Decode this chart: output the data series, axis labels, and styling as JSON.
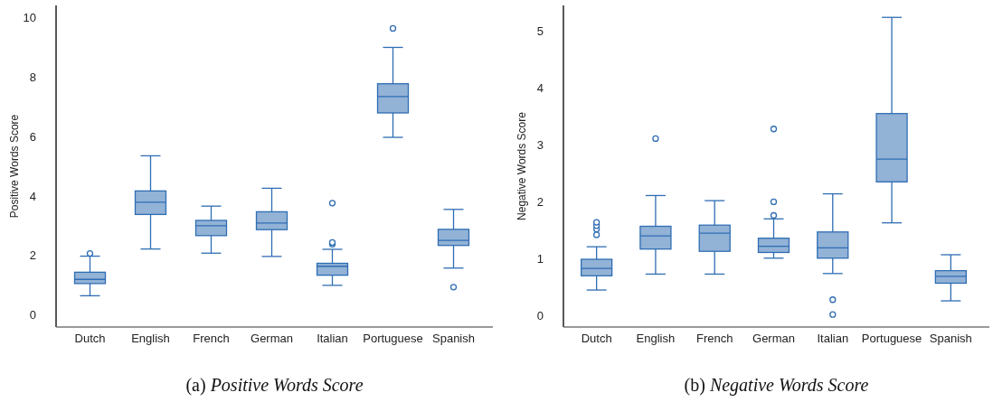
{
  "chart_data": [
    {
      "type": "box",
      "title": "(a) Positive Words Score",
      "ylabel": "Positive Words Score",
      "categories": [
        "Dutch",
        "English",
        "French",
        "German",
        "Italian",
        "Portuguese",
        "Spanish"
      ],
      "ylim": [
        -0.4,
        10.4
      ],
      "yticks": [
        0,
        2,
        4,
        6,
        8,
        10
      ],
      "grid": false,
      "series": [
        {
          "color": "#92b2d6",
          "boxes": [
            {
              "low": 0.65,
              "q1": 1.06,
              "median": 1.2,
              "q3": 1.44,
              "high": 1.98,
              "outliers": [
                2.07
              ]
            },
            {
              "low": 2.22,
              "q1": 3.38,
              "median": 3.79,
              "q3": 4.17,
              "high": 5.35
            },
            {
              "low": 2.08,
              "q1": 2.67,
              "median": 3.0,
              "q3": 3.18,
              "high": 3.66
            },
            {
              "low": 1.97,
              "q1": 2.87,
              "median": 3.09,
              "q3": 3.47,
              "high": 4.26
            },
            {
              "low": 1.0,
              "q1": 1.34,
              "median": 1.64,
              "q3": 1.74,
              "high": 2.21,
              "outliers": [
                2.38,
                2.44,
                3.76
              ]
            },
            {
              "low": 5.97,
              "q1": 6.79,
              "median": 7.34,
              "q3": 7.77,
              "high": 8.99,
              "outliers": [
                9.63
              ]
            },
            {
              "low": 1.58,
              "q1": 2.34,
              "median": 2.51,
              "q3": 2.88,
              "high": 3.55,
              "outliers": [
                0.94
              ]
            }
          ]
        }
      ]
    },
    {
      "type": "box",
      "title": "(b) Negative Words Score",
      "ylabel": "Negative Words Score",
      "categories": [
        "Dutch",
        "English",
        "French",
        "German",
        "Italian",
        "Portuguese",
        "Spanish"
      ],
      "ylim": [
        -0.2,
        5.45
      ],
      "yticks": [
        0,
        1,
        2,
        3,
        4,
        5
      ],
      "grid": false,
      "series": [
        {
          "color": "#92b2d6",
          "boxes": [
            {
              "low": 0.45,
              "q1": 0.7,
              "median": 0.83,
              "q3": 0.99,
              "high": 1.21,
              "outliers": [
                1.42,
                1.52,
                1.58,
                1.64
              ]
            },
            {
              "low": 0.73,
              "q1": 1.17,
              "median": 1.4,
              "q3": 1.57,
              "high": 2.11,
              "outliers": [
                3.11
              ]
            },
            {
              "low": 0.73,
              "q1": 1.13,
              "median": 1.45,
              "q3": 1.59,
              "high": 2.02
            },
            {
              "low": 1.01,
              "q1": 1.11,
              "median": 1.22,
              "q3": 1.36,
              "high": 1.7,
              "outliers": [
                1.76,
                2.0,
                3.28
              ]
            },
            {
              "low": 0.74,
              "q1": 1.01,
              "median": 1.19,
              "q3": 1.47,
              "high": 2.14,
              "outliers": [
                0.02,
                0.28
              ]
            },
            {
              "low": 1.63,
              "q1": 2.35,
              "median": 2.75,
              "q3": 3.55,
              "high": 5.24
            },
            {
              "low": 0.26,
              "q1": 0.57,
              "median": 0.69,
              "q3": 0.79,
              "high": 1.07
            }
          ]
        }
      ]
    }
  ]
}
